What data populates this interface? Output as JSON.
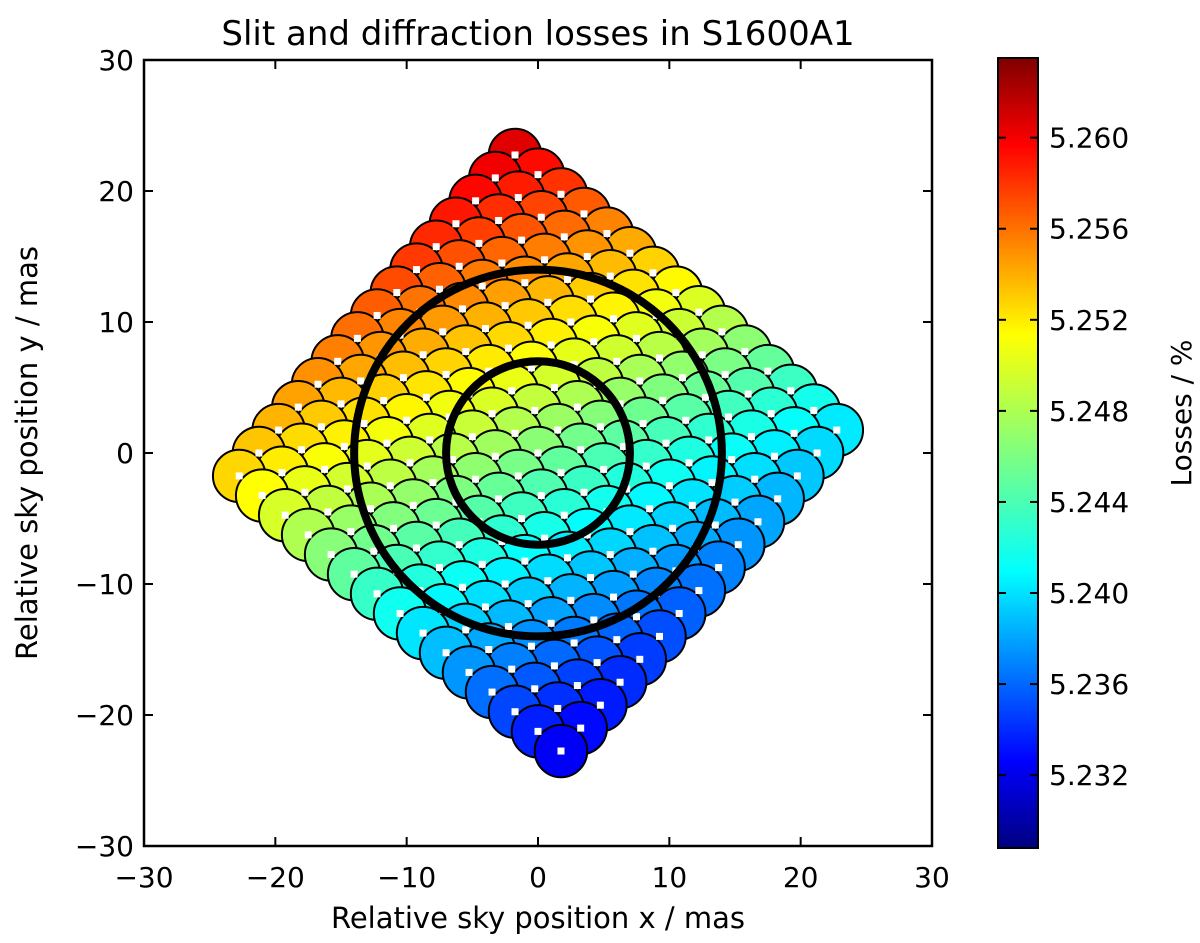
{
  "chart_data": {
    "type": "scatter",
    "title": "Slit and diffraction losses in S1600A1",
    "xlabel": "Relative sky position x / mas",
    "ylabel": "Relative sky position y / mas",
    "xlim": [
      -30,
      30
    ],
    "ylim": [
      -30,
      30
    ],
    "xticks": [
      "−30",
      "−20",
      "−10",
      "0",
      "10",
      "20",
      "30"
    ],
    "yticks": [
      "−30",
      "−20",
      "−10",
      "0",
      "10",
      "20",
      "30"
    ],
    "grid": false,
    "colorbar": {
      "label": "Losses / %",
      "range": [
        5.2288,
        5.2635
      ],
      "ticks": [
        "5.232",
        "5.236",
        "5.240",
        "5.244",
        "5.248",
        "5.252",
        "5.256",
        "5.260"
      ],
      "colormap": "jet"
    },
    "dither_pattern": {
      "description": "15 x 15 grid of sky positions rotated into a diamond",
      "grid_size": 15,
      "step_u": [
        1.5,
        1.75
      ],
      "step_v": [
        1.75,
        -1.5
      ],
      "point_radius": 2.0,
      "value_model": {
        "center": 5.2465,
        "gradient_x": -0.00028,
        "gradient_y": 0.00058
      }
    },
    "reference_circles": [
      {
        "name": "inner",
        "cx": 0,
        "cy": 0,
        "r": 7
      },
      {
        "name": "outer",
        "cx": 0,
        "cy": 0,
        "r": 14
      }
    ],
    "colors": {
      "marker_edge": "#000000",
      "circle_stroke": "#000000",
      "center_dot": "#ffffff"
    }
  }
}
